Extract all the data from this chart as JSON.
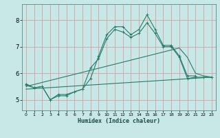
{
  "xlabel": "Humidex (Indice chaleur)",
  "background_color": "#c8e8e8",
  "grid_color": "#d4a0a0",
  "line_color": "#2a7a6a",
  "ylim": [
    4.6,
    8.6
  ],
  "xlim": [
    -0.5,
    23.5
  ],
  "yticks": [
    5,
    6,
    7,
    8
  ],
  "line1_x": [
    0,
    1,
    2,
    3,
    4,
    5,
    6,
    7,
    8,
    9,
    10,
    11,
    12,
    13,
    14,
    15,
    16,
    17,
    18,
    19,
    20,
    21
  ],
  "line1_y": [
    5.6,
    5.45,
    5.5,
    5.0,
    5.2,
    5.2,
    5.3,
    5.4,
    5.8,
    6.65,
    7.45,
    7.75,
    7.75,
    7.45,
    7.65,
    8.2,
    7.65,
    7.05,
    7.05,
    6.65,
    5.9,
    5.9
  ],
  "line2_x": [
    0,
    1,
    2,
    3,
    4,
    5,
    6,
    7,
    8,
    9,
    10,
    11,
    12,
    13,
    14,
    15,
    16,
    17,
    18,
    19,
    20,
    21,
    22,
    23
  ],
  "line2_y": [
    5.55,
    5.45,
    5.5,
    5.0,
    5.15,
    5.15,
    5.3,
    5.4,
    6.2,
    6.55,
    7.3,
    7.65,
    7.55,
    7.35,
    7.5,
    7.9,
    7.5,
    7.0,
    7.0,
    6.6,
    5.8,
    5.85,
    5.85,
    5.85
  ],
  "line3_x": [
    0,
    19,
    20,
    21,
    22,
    23
  ],
  "line3_y": [
    5.5,
    6.95,
    6.6,
    6.0,
    5.9,
    5.85
  ],
  "line4_x": [
    0,
    23
  ],
  "line4_y": [
    5.4,
    5.85
  ]
}
